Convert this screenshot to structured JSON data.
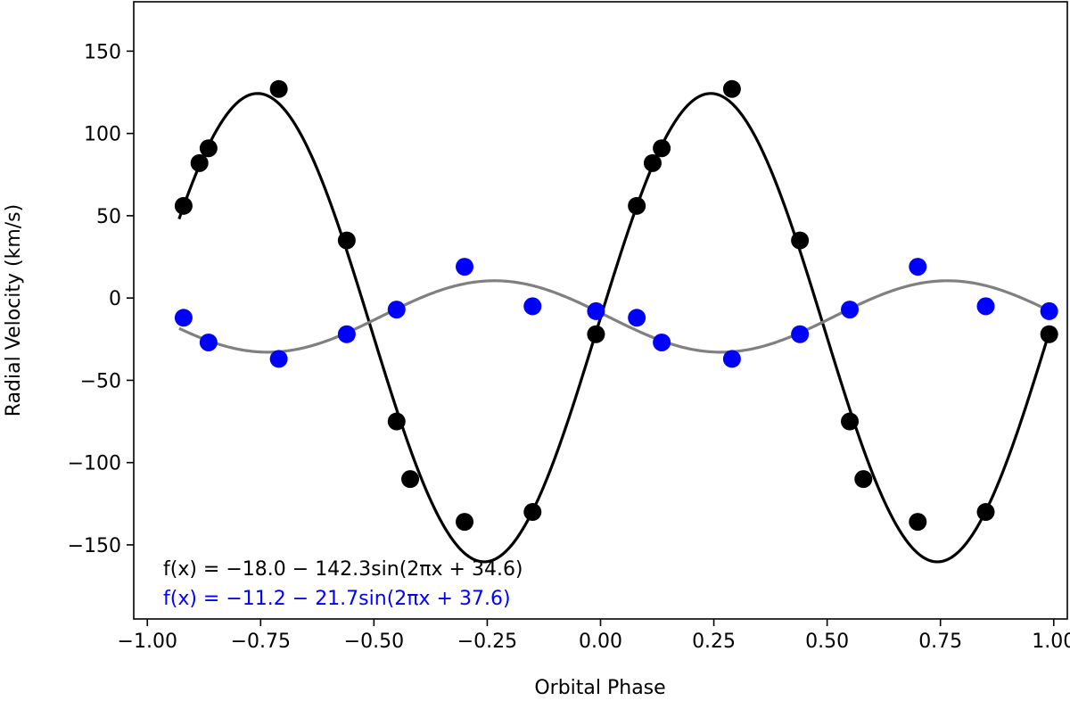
{
  "chart_data": {
    "type": "scatter",
    "title": "",
    "xlabel": "Orbital Phase",
    "ylabel": "Radial Velocity (km/s)",
    "xlim": [
      -1.03,
      1.03
    ],
    "ylim": [
      -195,
      180
    ],
    "xticks": [
      -1.0,
      -0.75,
      -0.5,
      -0.25,
      0.0,
      0.25,
      0.5,
      0.75,
      1.0
    ],
    "xtick_labels": [
      "−1.00",
      "−0.75",
      "−0.50",
      "−0.25",
      "0.00",
      "0.25",
      "0.50",
      "0.75",
      "1.00"
    ],
    "yticks": [
      -150,
      -100,
      -50,
      0,
      50,
      100,
      150
    ],
    "ytick_labels": [
      "−150",
      "−100",
      "−50",
      "0",
      "50",
      "100",
      "150"
    ],
    "grid": false,
    "series": [
      {
        "color": "#000000",
        "fit_color": "#000000",
        "fit": {
          "a": -18.0,
          "b": -142.3,
          "c": 34.6,
          "x_range": [
            -0.93,
            0.99
          ]
        },
        "points": [
          {
            "x": -0.92,
            "y": 56
          },
          {
            "x": -0.885,
            "y": 82
          },
          {
            "x": -0.865,
            "y": 91
          },
          {
            "x": -0.71,
            "y": 127
          },
          {
            "x": -0.56,
            "y": 35
          },
          {
            "x": -0.45,
            "y": -75
          },
          {
            "x": -0.42,
            "y": -110
          },
          {
            "x": -0.3,
            "y": -136
          },
          {
            "x": -0.15,
            "y": -130
          },
          {
            "x": -0.01,
            "y": -22
          },
          {
            "x": 0.08,
            "y": 56
          },
          {
            "x": 0.115,
            "y": 82
          },
          {
            "x": 0.135,
            "y": 91
          },
          {
            "x": 0.29,
            "y": 127
          },
          {
            "x": 0.44,
            "y": 35
          },
          {
            "x": 0.55,
            "y": -75
          },
          {
            "x": 0.58,
            "y": -110
          },
          {
            "x": 0.7,
            "y": -136
          },
          {
            "x": 0.85,
            "y": -130
          },
          {
            "x": 0.99,
            "y": -22
          }
        ],
        "xerr": 0.018
      },
      {
        "color": "#0000ff",
        "fit_color": "#808080",
        "fit": {
          "a": -11.2,
          "b": -21.7,
          "c": 37.6,
          "x_range": [
            -0.93,
            0.99
          ]
        },
        "points": [
          {
            "x": -0.92,
            "y": -12
          },
          {
            "x": -0.865,
            "y": -27
          },
          {
            "x": -0.71,
            "y": -37
          },
          {
            "x": -0.56,
            "y": -22
          },
          {
            "x": -0.45,
            "y": -7
          },
          {
            "x": -0.3,
            "y": 19
          },
          {
            "x": -0.15,
            "y": -5
          },
          {
            "x": -0.01,
            "y": -8
          },
          {
            "x": 0.08,
            "y": -12
          },
          {
            "x": 0.135,
            "y": -27
          },
          {
            "x": 0.29,
            "y": -37
          },
          {
            "x": 0.44,
            "y": -22
          },
          {
            "x": 0.55,
            "y": -7
          },
          {
            "x": 0.7,
            "y": 19
          },
          {
            "x": 0.85,
            "y": -5
          },
          {
            "x": 0.99,
            "y": -8
          }
        ],
        "xerr": 0.018
      }
    ],
    "annotations": [
      {
        "text": "f(x) = −18.0 − 142.3sin(2πx + 34.6)",
        "color": "#000000"
      },
      {
        "text": "f(x) = −11.2 − 21.7sin(2πx + 37.6)",
        "color": "#0000ff"
      }
    ]
  }
}
